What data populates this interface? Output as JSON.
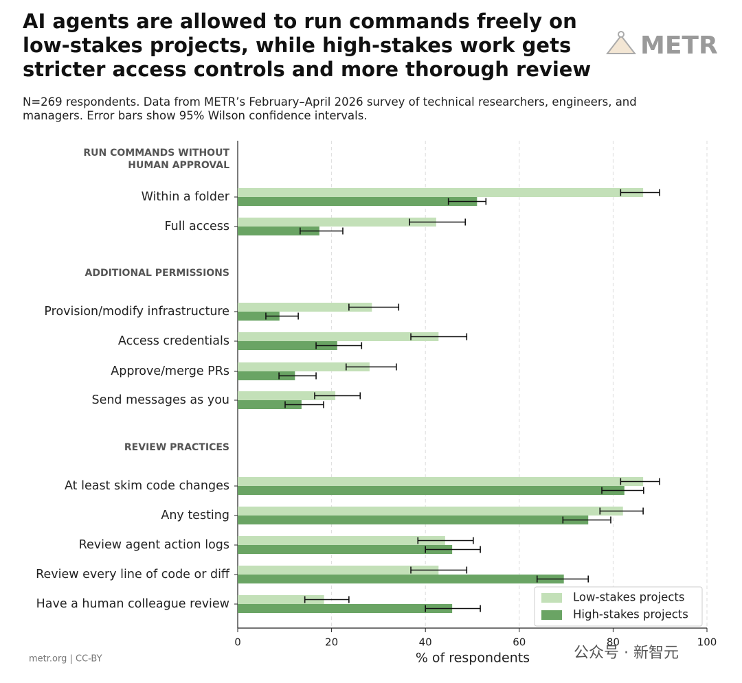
{
  "chart_data": {
    "type": "grouped-hbar-ci",
    "title": "AI agents are allowed to run commands freely on low-stakes projects, while high-stakes work gets stricter access controls and more thorough review",
    "subtitle": "N=269 respondents. Data from METR’s February–April 2026 survey of technical researchers, engineers, and managers. Error bars show 95% Wilson confidence intervals.",
    "logo": "METR",
    "footer": "metr.org | CC-BY",
    "watermark": "公众号 · 新智元",
    "groups": [
      {
        "title": "RUN COMMANDS WITHOUT HUMAN APPROVAL",
        "categories": [
          "Within a folder",
          "Full access"
        ]
      },
      {
        "title": "ADDITIONAL PERMISSIONS",
        "categories": [
          "Provision/modify infrastructure",
          "Access credentials",
          "Approve/merge PRs",
          "Send messages as you"
        ]
      },
      {
        "title": "REVIEW PRACTICES",
        "categories": [
          "At least skim code changes",
          "Any testing",
          "Review agent action logs",
          "Review every line of code or diff",
          "Have a human colleague review"
        ]
      }
    ],
    "series": [
      {
        "name": "Low-stakes projects",
        "color": "#c3e0b8",
        "values": [
          86.4,
          42.3,
          28.6,
          42.8,
          28.1,
          20.8,
          86.4,
          82.1,
          44.2,
          42.8,
          18.4
        ],
        "ci": [
          [
            81.6,
            89.9
          ],
          [
            36.6,
            48.5
          ],
          [
            23.7,
            34.3
          ],
          [
            36.9,
            48.8
          ],
          [
            23.1,
            33.8
          ],
          [
            16.4,
            26.1
          ],
          [
            81.6,
            89.9
          ],
          [
            77.2,
            86.4
          ],
          [
            38.4,
            50.2
          ],
          [
            36.9,
            48.8
          ],
          [
            14.3,
            23.7
          ]
        ]
      },
      {
        "name": "High-stakes projects",
        "color": "#6aa464",
        "values": [
          51.0,
          17.4,
          8.9,
          21.2,
          12.2,
          13.6,
          82.4,
          74.7,
          45.7,
          69.5,
          45.7
        ],
        "ci": [
          [
            44.9,
            52.9
          ],
          [
            13.3,
            22.4
          ],
          [
            6.0,
            12.9
          ],
          [
            16.7,
            26.4
          ],
          [
            8.8,
            16.7
          ],
          [
            10.1,
            18.3
          ],
          [
            77.6,
            86.5
          ],
          [
            69.3,
            79.5
          ],
          [
            40.0,
            51.7
          ],
          [
            63.8,
            74.7
          ],
          [
            40.0,
            51.7
          ]
        ]
      }
    ],
    "xlabel": "% of respondents",
    "xlim": [
      0,
      100
    ],
    "xticks": [
      0,
      20,
      40,
      60,
      80,
      100
    ],
    "grid": true,
    "legend": "lower right"
  }
}
